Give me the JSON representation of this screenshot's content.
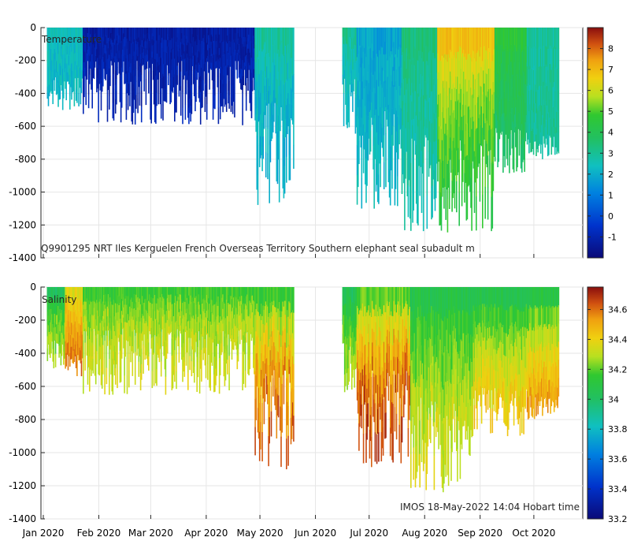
{
  "chart_data": [
    {
      "type": "heatmap",
      "title": "Temperature",
      "caption": "Q9901295 NRT Iles Kerguelen French Overseas Territory Southern elephant seal subadult m",
      "ylim": [
        -1400,
        0
      ],
      "yticks": [
        0,
        -200,
        -400,
        -600,
        -800,
        -1000,
        -1200,
        -1400
      ],
      "xlim": [
        0,
        300
      ],
      "xticks": [
        {
          "label": "Jan 2020",
          "day": 0
        },
        {
          "label": "Feb 2020",
          "day": 31
        },
        {
          "label": "Mar 2020",
          "day": 60
        },
        {
          "label": "Apr 2020",
          "day": 91
        },
        {
          "label": "May 2020",
          "day": 121
        },
        {
          "label": "Jun 2020",
          "day": 152
        },
        {
          "label": "Jul 2020",
          "day": 182
        },
        {
          "label": "Aug 2020",
          "day": 213
        },
        {
          "label": "Sep 2020",
          "day": 244
        },
        {
          "label": "Oct 2020",
          "day": 274
        }
      ],
      "colorbar": {
        "min": -2,
        "max": 9,
        "ticks": [
          -1,
          0,
          1,
          2,
          3,
          4,
          5,
          6,
          7,
          8
        ]
      },
      "segments": [
        {
          "start": 2,
          "end": 22,
          "surface": 2.5,
          "deep": 2.2,
          "depth": [
            -300,
            -500
          ]
        },
        {
          "start": 22,
          "end": 118,
          "surface": -1.3,
          "deep": -1.0,
          "depth": [
            -200,
            -600
          ]
        },
        {
          "start": 118,
          "end": 140,
          "surface": 3.2,
          "deep": 1.9,
          "depth": [
            -450,
            -1100
          ]
        },
        {
          "start": 167,
          "end": 175,
          "surface": 3.3,
          "deep": 2.2,
          "depth": [
            -300,
            -650
          ]
        },
        {
          "start": 175,
          "end": 200,
          "surface": 1.6,
          "deep": 2.3,
          "depth": [
            -500,
            -1100
          ]
        },
        {
          "start": 200,
          "end": 220,
          "surface": 3.5,
          "deep": 2.6,
          "depth": [
            -600,
            -1250
          ]
        },
        {
          "start": 220,
          "end": 252,
          "surface": 7.6,
          "deep": 4.3,
          "depth": [
            -650,
            -1250
          ]
        },
        {
          "start": 252,
          "end": 270,
          "surface": 4.8,
          "deep": 3.6,
          "depth": [
            -600,
            -900
          ]
        },
        {
          "start": 270,
          "end": 288,
          "surface": 2.8,
          "deep": 3.0,
          "depth": [
            -650,
            -800
          ]
        }
      ]
    },
    {
      "type": "heatmap",
      "title": "Salinity",
      "caption": "IMOS 18-May-2022 14:04 Hobart time",
      "ylim": [
        -1400,
        0
      ],
      "yticks": [
        0,
        -200,
        -400,
        -600,
        -800,
        -1000,
        -1200,
        -1400
      ],
      "xlim": [
        0,
        300
      ],
      "xticks": [
        {
          "label": "Jan 2020",
          "day": 0
        },
        {
          "label": "Feb 2020",
          "day": 31
        },
        {
          "label": "Mar 2020",
          "day": 60
        },
        {
          "label": "Apr 2020",
          "day": 91
        },
        {
          "label": "May 2020",
          "day": 121
        },
        {
          "label": "Jun 2020",
          "day": 152
        },
        {
          "label": "Jul 2020",
          "day": 182
        },
        {
          "label": "Aug 2020",
          "day": 213
        },
        {
          "label": "Sep 2020",
          "day": 244
        },
        {
          "label": "Oct 2020",
          "day": 274
        }
      ],
      "colorbar": {
        "min": 33.2,
        "max": 34.75,
        "ticks": [
          33.2,
          33.4,
          33.6,
          33.8,
          34,
          34.2,
          34.4,
          34.6
        ]
      },
      "segments": [
        {
          "start": 2,
          "end": 12,
          "surface": 33.95,
          "deep": 34.3,
          "depth": [
            -300,
            -500
          ]
        },
        {
          "start": 12,
          "end": 22,
          "surface": 34.3,
          "deep": 34.6,
          "depth": [
            -400,
            -550
          ]
        },
        {
          "start": 22,
          "end": 118,
          "surface": 34.1,
          "deep": 34.35,
          "depth": [
            -250,
            -650
          ]
        },
        {
          "start": 118,
          "end": 140,
          "surface": 34.0,
          "deep": 34.65,
          "depth": [
            -500,
            -1100
          ]
        },
        {
          "start": 167,
          "end": 175,
          "surface": 33.95,
          "deep": 34.3,
          "depth": [
            -300,
            -650
          ]
        },
        {
          "start": 175,
          "end": 205,
          "surface": 34.05,
          "deep": 34.7,
          "depth": [
            -500,
            -1100
          ]
        },
        {
          "start": 205,
          "end": 240,
          "surface": 34.0,
          "deep": 34.35,
          "depth": [
            -650,
            -1250
          ]
        },
        {
          "start": 240,
          "end": 270,
          "surface": 33.95,
          "deep": 34.45,
          "depth": [
            -600,
            -900
          ]
        },
        {
          "start": 270,
          "end": 288,
          "surface": 33.95,
          "deep": 34.55,
          "depth": [
            -650,
            -800
          ]
        }
      ]
    }
  ]
}
